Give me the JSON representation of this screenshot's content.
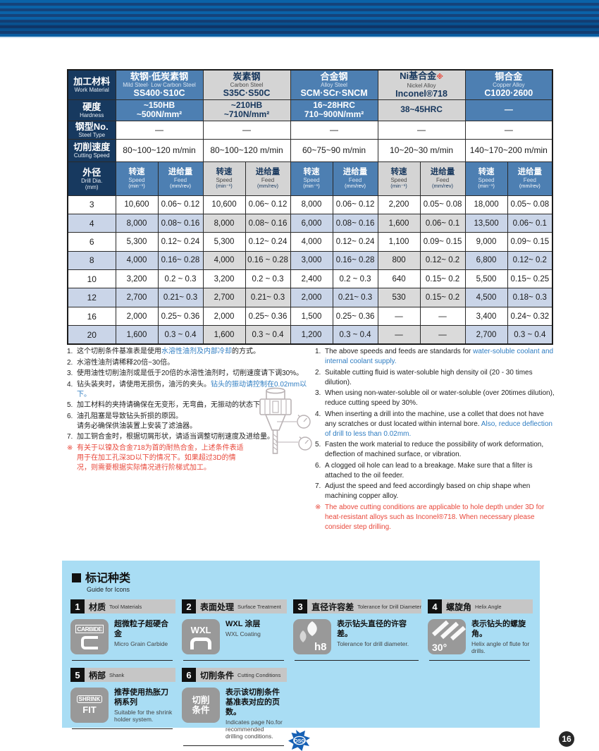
{
  "table": {
    "row_headers": {
      "material": {
        "zh": "加工材料",
        "en": "Work Material"
      },
      "hardness": {
        "zh": "硬度",
        "en": "Hardness"
      },
      "steel_type": {
        "zh": "钢型No.",
        "en": "Steel Type"
      },
      "cutting_speed": {
        "zh": "切削速度",
        "en": "Cutting Speed"
      },
      "drill_dia": {
        "zh": "外径",
        "en": "Drill Dia.",
        "unit": "(mm)"
      }
    },
    "sub_headers": {
      "speed": {
        "zh": "转速",
        "en": "Speed",
        "unit": "(min⁻¹)"
      },
      "feed": {
        "zh": "进给量",
        "en": "Feed",
        "unit": "(mm/rev)"
      }
    },
    "materials": [
      {
        "zh": "软钢·低炭素钢",
        "mark": "",
        "en": "Mild Steel· Low Carbon Steel",
        "grades": "SS400·S10C",
        "theme": "blue",
        "hardness": [
          "~150HB",
          "~500N/mm²"
        ],
        "steel_no": "—",
        "cutting_speed": "80~100~120 m/min"
      },
      {
        "zh": "炭素钢",
        "mark": "",
        "en": "Carbon Steel",
        "grades": "S35C·S50C",
        "theme": "gray",
        "hardness": [
          "~210HB",
          "~710N/mm²"
        ],
        "steel_no": "—",
        "cutting_speed": "80~100~120 m/min"
      },
      {
        "zh": "合金钢",
        "mark": "",
        "en": "Alloy Steel",
        "grades": "SCM·SCr·SNCM",
        "theme": "blue",
        "hardness": [
          "16~28HRC",
          "710~900N/mm²"
        ],
        "steel_no": "—",
        "cutting_speed": "60~75~90 m/min"
      },
      {
        "zh": "Ni基合金",
        "mark": "※",
        "en": "Nickel Alloy",
        "grades": "Inconel®718",
        "theme": "gray",
        "hardness": [
          "38~45HRC"
        ],
        "steel_no": "—",
        "cutting_speed": "10~20~30 m/min"
      },
      {
        "zh": "铜合金",
        "mark": "",
        "en": "Copper Alloy",
        "grades": "C1020·2600",
        "theme": "blue",
        "hardness": [
          "—"
        ],
        "steel_no": "—",
        "cutting_speed": "140~170~200 m/min"
      }
    ],
    "rows": [
      {
        "dia": "3",
        "values": [
          [
            "10,600",
            "0.06~ 0.12"
          ],
          [
            "10,600",
            "0.06~ 0.12"
          ],
          [
            "8,000",
            "0.06~ 0.12"
          ],
          [
            "2,200",
            "0.05~ 0.08"
          ],
          [
            "18,000",
            "0.05~ 0.08"
          ]
        ]
      },
      {
        "dia": "4",
        "values": [
          [
            "8,000",
            "0.08~ 0.16"
          ],
          [
            "8,000",
            "0.08~ 0.16"
          ],
          [
            "6,000",
            "0.08~ 0.16"
          ],
          [
            "1,600",
            "0.06~ 0.1"
          ],
          [
            "13,500",
            "0.06~ 0.1"
          ]
        ]
      },
      {
        "dia": "6",
        "values": [
          [
            "5,300",
            "0.12~ 0.24"
          ],
          [
            "5,300",
            "0.12~ 0.24"
          ],
          [
            "4,000",
            "0.12~ 0.24"
          ],
          [
            "1,100",
            "0.09~ 0.15"
          ],
          [
            "9,000",
            "0.09~ 0.15"
          ]
        ]
      },
      {
        "dia": "8",
        "values": [
          [
            "4,000",
            "0.16~ 0.28"
          ],
          [
            "4,000",
            "0.16 ~ 0.28"
          ],
          [
            "3,000",
            "0.16~ 0.28"
          ],
          [
            "800",
            "0.12~ 0.2"
          ],
          [
            "6,800",
            "0.12~ 0.2"
          ]
        ]
      },
      {
        "dia": "10",
        "values": [
          [
            "3,200",
            "0.2  ~ 0.3"
          ],
          [
            "3,200",
            "0.2  ~ 0.3"
          ],
          [
            "2,400",
            "0.2  ~ 0.3"
          ],
          [
            "640",
            "0.15~ 0.2"
          ],
          [
            "5,500",
            "0.15~ 0.25"
          ]
        ]
      },
      {
        "dia": "12",
        "values": [
          [
            "2,700",
            "0.21~ 0.3"
          ],
          [
            "2,700",
            "0.21~ 0.3"
          ],
          [
            "2,000",
            "0.21~ 0.3"
          ],
          [
            "530",
            "0.15~ 0.2"
          ],
          [
            "4,500",
            "0.18~ 0.3"
          ]
        ]
      },
      {
        "dia": "16",
        "values": [
          [
            "2,000",
            "0.25~ 0.36"
          ],
          [
            "2,000",
            "0.25~ 0.36"
          ],
          [
            "1,500",
            "0.25~ 0.36"
          ],
          [
            "—",
            "—"
          ],
          [
            "3,400",
            "0.24~ 0.32"
          ]
        ]
      },
      {
        "dia": "20",
        "values": [
          [
            "1,600",
            "0.3  ~ 0.4"
          ],
          [
            "1,600",
            "0.3  ~ 0.4"
          ],
          [
            "1,200",
            "0.3  ~ 0.4"
          ],
          [
            "—",
            "—"
          ],
          [
            "2,700",
            "0.3  ~ 0.4"
          ]
        ]
      }
    ]
  },
  "notes_zh": [
    {
      "num": "1.",
      "segments": [
        {
          "t": "这个切削条件基准表是使用",
          "c": "k"
        },
        {
          "t": "水溶性油剂及内部冷却",
          "c": "b"
        },
        {
          "t": "的方式。",
          "c": "k"
        }
      ]
    },
    {
      "num": "2.",
      "segments": [
        {
          "t": "水溶性油剂请稀释20倍~30倍。",
          "c": "k"
        }
      ]
    },
    {
      "num": "3.",
      "segments": [
        {
          "t": "使用油性切削油剂或是低于20倍的水溶性油剂时，切削速度请下调30%。",
          "c": "k"
        }
      ]
    },
    {
      "num": "4.",
      "segments": [
        {
          "t": "钻头装夹时，请使用无损伤，油污的夹头。",
          "c": "k"
        },
        {
          "t": "钻头的振动请控制在0.02mm以下。",
          "c": "b"
        }
      ]
    },
    {
      "num": "5.",
      "segments": [
        {
          "t": "加工材料的夹持请确保在无变形，无弯曲，无振动的状态下。",
          "c": "k"
        }
      ]
    },
    {
      "num": "6.",
      "segments": [
        {
          "t": "油孔阻塞是导致钻头折损的原因。\n请务必确保供油装置上安装了滤油器。",
          "c": "k"
        }
      ]
    },
    {
      "num": "7.",
      "segments": [
        {
          "t": "加工铜合金时，根据切屑形状，请适当调整切削速度及进给量。",
          "c": "k"
        }
      ]
    },
    {
      "num": "※",
      "segments": [
        {
          "t": "有关于以镍及合金718为首的耐热合金，上述条件表适用于在加工孔深3D以下的情况下。如果超过3D的情况，则需要根据实际情况进行阶梯式加工。",
          "c": "r"
        }
      ]
    }
  ],
  "notes_en": [
    {
      "num": "1.",
      "segments": [
        {
          "t": "The above speeds and feeds are standards for ",
          "c": "k"
        },
        {
          "t": "water-soluble coolant and internal coolant supply.",
          "c": "b"
        }
      ]
    },
    {
      "num": "2.",
      "segments": [
        {
          "t": "Suitable cutting fluid is water-soluble high density oil (20 - 30 times dilution).",
          "c": "k"
        }
      ]
    },
    {
      "num": "3.",
      "segments": [
        {
          "t": "When using non-water-soluble oil or water-soluble (over 20times dilution), reduce cutting speed by 30%.",
          "c": "k"
        }
      ]
    },
    {
      "num": "4.",
      "segments": [
        {
          "t": "When inserting a drill into the machine, use a collet that does not have any scratches or dust located within internal bore.  ",
          "c": "k"
        },
        {
          "t": "Also, reduce deflection of drill to less than 0.02mm.",
          "c": "b"
        }
      ]
    },
    {
      "num": "5.",
      "segments": [
        {
          "t": "Fasten the work material to reduce the possibility of work deformation, deflection of machined surface, or vibration.",
          "c": "k"
        }
      ]
    },
    {
      "num": "6.",
      "segments": [
        {
          "t": "A clogged oil hole can lead to a breakage. Make sure that a filter is attached to the oil feeder.",
          "c": "k"
        }
      ]
    },
    {
      "num": "7.",
      "segments": [
        {
          "t": "Adjust the speed and feed accordingly based on chip shape when machining copper alloy.",
          "c": "k"
        }
      ]
    },
    {
      "num": "※",
      "segments": [
        {
          "t": "The above cutting conditions are applicable to hole depth under 3D for heat-resistant alloys such as Inconel®718. When necessary please consider step drilling.",
          "c": "r"
        }
      ]
    }
  ],
  "icon_guide": {
    "title_zh": "标记种类",
    "title_en": "Guide for Icons",
    "items": [
      {
        "num": "1",
        "title_zh": "材质",
        "title_en": "Tool Materials",
        "icon": "carbide-icon",
        "icon_label": "CARBIDE",
        "desc_zh": "超微粒子超硬合金",
        "desc_en": "Micro Grain Carbide"
      },
      {
        "num": "2",
        "title_zh": "表面处理",
        "title_en": "Surface Treatment",
        "icon": "wxl-icon",
        "icon_label": "WXL",
        "desc_zh": "WXL 涂层",
        "desc_en": "WXL Coating"
      },
      {
        "num": "3",
        "title_zh": "直径许容差",
        "title_en": "Tolerance for Drill Diameter",
        "icon": "h8-icon",
        "icon_label": "h8",
        "desc_zh": "表示钻头直径的许容差。",
        "desc_en": "Tolerance for drill diameter."
      },
      {
        "num": "4",
        "title_zh": "螺旋角",
        "title_en": "Helix Angle",
        "icon": "helix-angle-icon",
        "icon_label": "30°",
        "desc_zh": "表示钻头的螺旋角。",
        "desc_en": "Helix angle of flute for drills."
      },
      {
        "num": "5",
        "title_zh": "柄部",
        "title_en": "Shank",
        "icon": "shrink-fit-icon",
        "icon_label": "SHRINK FIT",
        "desc_zh": "推荐使用热胀刀柄系列",
        "desc_en": "Suitable for the shrink\nholder system."
      },
      {
        "num": "6",
        "title_zh": "切削条件",
        "title_en": "Cutting Conditions",
        "icon": "cutting-conditions-icon",
        "icon_label": "切削条件",
        "desc_zh": "表示该切削条件\n基准表对应的页数。",
        "desc_en": "Indicates page No.for recommended\ndrilling conditions."
      }
    ]
  },
  "footer": {
    "logo_text": "OSG",
    "page_number": "16"
  },
  "colors": {
    "navy": "#17395f",
    "blue_header": "#4d7fb2",
    "gray_header": "#d4d4d4",
    "blue_tint": "#cad5e8",
    "gray_tint": "#dadada",
    "panel_blue": "#a9ddf4",
    "note_blue": "#2f7dc2",
    "note_red": "#e8473a"
  }
}
